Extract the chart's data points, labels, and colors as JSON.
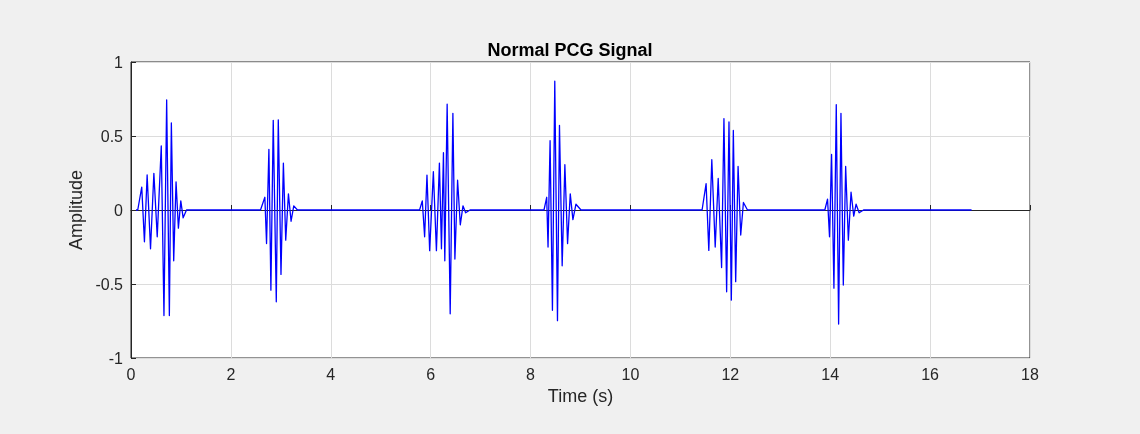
{
  "chart_data": {
    "type": "line",
    "title": "Normal PCG Signal",
    "xlabel": "Time (s)",
    "ylabel": "Amplitude",
    "xlim": [
      0,
      18
    ],
    "xticks": [
      0,
      2,
      4,
      6,
      8,
      10,
      12,
      14,
      16,
      18
    ],
    "ylim": [
      -1,
      1
    ],
    "yticks": [
      -1,
      -0.5,
      0,
      0.5,
      1
    ],
    "grid": true,
    "marker": "none",
    "line_style": "solid",
    "series": [
      {
        "color": "#0000ff",
        "x": [
          0.1,
          0.135,
          0.215,
          0.269,
          0.323,
          0.391,
          0.458,
          0.525,
          0.606,
          0.66,
          0.714,
          0.768,
          0.808,
          0.855,
          0.902,
          0.949,
          0.997,
          1.044,
          1.111,
          2.593,
          2.68,
          2.714,
          2.761,
          2.801,
          2.848,
          2.909,
          2.949,
          3.003,
          3.051,
          3.098,
          3.152,
          3.205,
          3.259,
          3.333,
          5.778,
          5.832,
          5.879,
          5.926,
          5.98,
          6.054,
          6.115,
          6.175,
          6.216,
          6.256,
          6.283,
          6.33,
          6.391,
          6.445,
          6.485,
          6.539,
          6.593,
          6.647,
          6.7,
          6.788,
          8.269,
          8.323,
          8.35,
          8.391,
          8.438,
          8.485,
          8.539,
          8.579,
          8.633,
          8.687,
          8.741,
          8.795,
          8.848,
          8.909,
          9.01,
          11.434,
          11.515,
          11.569,
          11.629,
          11.697,
          11.757,
          11.825,
          11.872,
          11.926,
          11.973,
          12.02,
          12.06,
          12.107,
          12.155,
          12.208,
          12.262,
          12.343,
          13.892,
          13.946,
          13.986,
          14.027,
          14.074,
          14.121,
          14.168,
          14.215,
          14.262,
          14.309,
          14.363,
          14.417,
          14.471,
          14.518,
          14.579,
          14.667,
          16.83
        ],
        "values": [
          0,
          0,
          0.155,
          -0.215,
          0.237,
          -0.262,
          0.248,
          -0.181,
          0.433,
          -0.713,
          0.744,
          -0.713,
          0.588,
          -0.343,
          0.19,
          -0.123,
          0.062,
          -0.053,
          0,
          0,
          0.086,
          -0.227,
          0.41,
          -0.542,
          0.606,
          -0.62,
          0.609,
          -0.435,
          0.317,
          -0.204,
          0.109,
          -0.076,
          0.028,
          0,
          0,
          0.062,
          -0.181,
          0.236,
          -0.275,
          0.259,
          -0.275,
          0.317,
          -0.262,
          0.387,
          -0.343,
          0.715,
          -0.701,
          0.653,
          -0.331,
          0.201,
          -0.1,
          0.028,
          -0.019,
          0,
          0,
          0.086,
          -0.25,
          0.468,
          -0.678,
          0.87,
          -0.748,
          0.572,
          -0.377,
          0.306,
          -0.227,
          0.109,
          -0.065,
          0.039,
          0,
          0,
          0.178,
          -0.273,
          0.34,
          -0.25,
          0.213,
          -0.389,
          0.618,
          -0.553,
          0.595,
          -0.609,
          0.537,
          -0.484,
          0.294,
          -0.169,
          0.051,
          0,
          0,
          0.074,
          -0.181,
          0.375,
          -0.528,
          0.711,
          -0.771,
          0.653,
          -0.507,
          0.294,
          -0.204,
          0.12,
          -0.042,
          0.039,
          -0.019,
          0,
          0
        ]
      }
    ]
  }
}
